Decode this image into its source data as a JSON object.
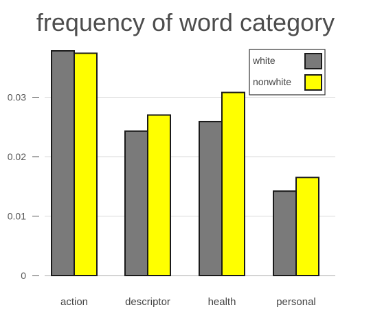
{
  "chart_data": {
    "type": "bar",
    "title": "frequency of word category",
    "xlabel": "",
    "ylabel": "",
    "categories": [
      "action",
      "descriptor",
      "health",
      "personal"
    ],
    "series": [
      {
        "name": "white",
        "values": [
          0.0378,
          0.0243,
          0.0259,
          0.0142
        ],
        "color": "#7a7a7a"
      },
      {
        "name": "nonwhite",
        "values": [
          0.0374,
          0.027,
          0.0308,
          0.0165
        ],
        "color": "#ffff00"
      }
    ],
    "ylim": [
      0,
      0.04
    ],
    "yticks": [
      0,
      0.01,
      0.02,
      0.03
    ],
    "ytick_labels": [
      "0",
      "0.01",
      "0.02",
      "0.03"
    ],
    "grid": true,
    "legend_position": "top-right"
  }
}
